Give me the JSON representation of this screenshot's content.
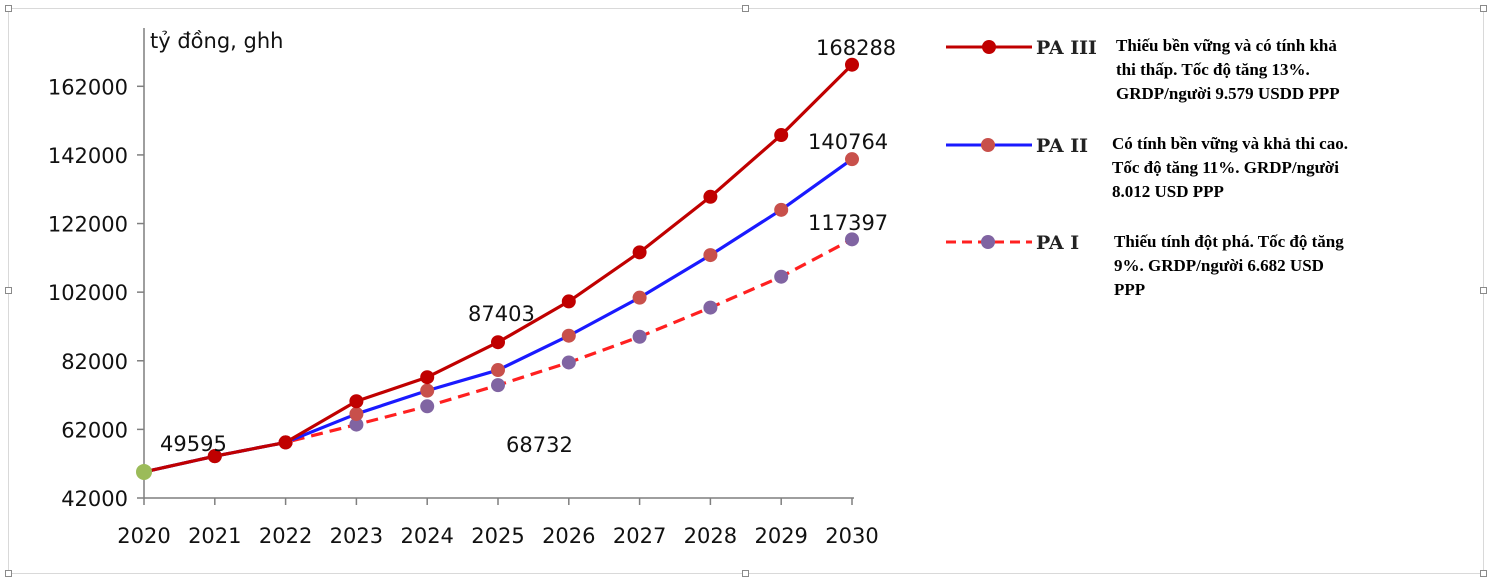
{
  "chart_data": {
    "type": "line",
    "ylabel": "tỷ đồng, ghh",
    "ylim": [
      42000,
      172000
    ],
    "yticks": [
      "42000",
      "62000",
      "82000",
      "102000",
      "122000",
      "142000",
      "162000"
    ],
    "categories": [
      "2020",
      "2021",
      "2022",
      "2023",
      "2024",
      "2025",
      "2026",
      "2027",
      "2028",
      "2029",
      "2030"
    ],
    "grid": false,
    "legend_position": "right",
    "series": [
      {
        "name": "PA III",
        "description": "Thiếu bền vững và có tính khả\nthi thấp. Tốc độ tăng 13%.\nGRDP/người 9.579 USDD PPP",
        "line_color": "#c00000",
        "marker_color": "#c00000",
        "dash": false,
        "values": [
          49595,
          54200,
          58200,
          70200,
          77200,
          87403,
          99300,
          113600,
          129800,
          147800,
          168288
        ]
      },
      {
        "name": "PA II",
        "description": "Có tính bền vững và khả thi cao.\nTốc độ tăng 11%. GRDP/người\n8.012 USD PPP",
        "line_color": "#1a1aff",
        "marker_color": "#c8504b",
        "dash": false,
        "values": [
          49595,
          54200,
          58200,
          66500,
          73300,
          79300,
          89300,
          100400,
          112800,
          126000,
          140764
        ]
      },
      {
        "name": "PA I",
        "description": "Thiếu tính đột phá. Tốc độ tăng\n9%. GRDP/người 6.682 USD\nPPP",
        "line_color": "#ff2020",
        "marker_color": "#8064a2",
        "dash": true,
        "values": [
          49595,
          54200,
          58200,
          63400,
          68732,
          74900,
          81500,
          89000,
          97500,
          106500,
          117397
        ]
      }
    ],
    "start_marker_color": "#9bbb59",
    "annotations": [
      "168288",
      "140764",
      "117397",
      "87403",
      "49595",
      "68732"
    ]
  }
}
